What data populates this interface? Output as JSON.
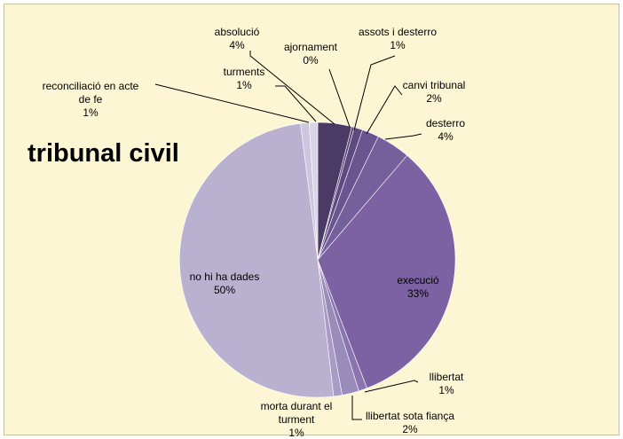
{
  "chart_data": {
    "type": "pie",
    "title": "tribunal civil",
    "start_angle_deg": 0,
    "direction": "clockwise",
    "slices": [
      {
        "label": "absolució",
        "value": 4,
        "pct": "4%",
        "color": "#4a3a66"
      },
      {
        "label": "ajornament",
        "value": 0.3,
        "pct": "0%",
        "color": "#5a4678"
      },
      {
        "label": "assots i desterro",
        "value": 1,
        "pct": "1%",
        "color": "#5e4a80"
      },
      {
        "label": "canvi tribunal",
        "value": 2,
        "pct": "2%",
        "color": "#6a5590"
      },
      {
        "label": "desterro",
        "value": 4,
        "pct": "4%",
        "color": "#74609b"
      },
      {
        "label": "execució",
        "value": 33,
        "pct": "33%",
        "color": "#7c62a3"
      },
      {
        "label": "llibertat",
        "value": 1,
        "pct": "1%",
        "color": "#8a75b0"
      },
      {
        "label": "llibertat sota fiança",
        "value": 2,
        "pct": "2%",
        "color": "#9a8cba"
      },
      {
        "label": "morta durant el turment",
        "value": 1,
        "pct": "1%",
        "color": "#a89bc6"
      },
      {
        "label": "no hi ha dades",
        "value": 50,
        "pct": "50%",
        "color": "#bab0d0"
      },
      {
        "label": "reconciliació en acte de fe",
        "value": 1,
        "pct": "1%",
        "color": "#cdc6de"
      },
      {
        "label": "turments",
        "value": 1,
        "pct": "1%",
        "color": "#d9d4e7"
      }
    ]
  }
}
